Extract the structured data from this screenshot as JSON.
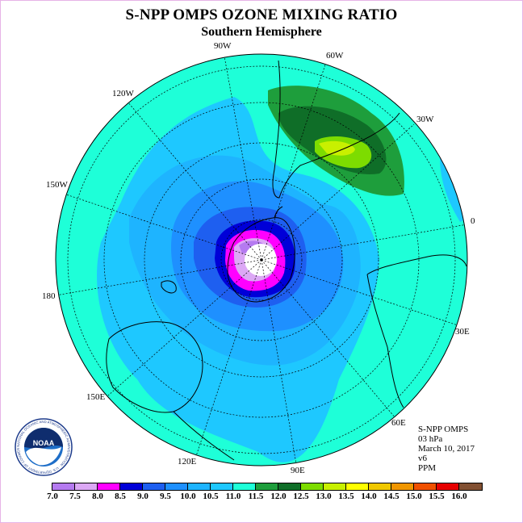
{
  "title": "S-NPP OMPS OZONE MIXING RATIO",
  "subtitle": "Southern Hemisphere",
  "longitude_labels": {
    "lon_90w": "90W",
    "lon_60w": "60W",
    "lon_30w": "30W",
    "lon_0": "0",
    "lon_30e": "30E",
    "lon_60e": "60E",
    "lon_90e": "90E",
    "lon_120e": "120E",
    "lon_150e": "150E",
    "lon_180": "180",
    "lon_150w": "150W",
    "lon_120w": "120W"
  },
  "info": {
    "instrument": "S-NPP OMPS",
    "level": "03 hPa",
    "date": "March 10, 2017",
    "version": "v6",
    "units": "PPM"
  },
  "logo": {
    "text": "NOAA",
    "ring_text": "NATIONAL OCEANIC AND ATMOSPHERIC ADMINISTRATION · U.S. DEPARTMENT OF COMMERCE"
  },
  "colorbar": {
    "ticks": [
      "7.0",
      "7.5",
      "8.0",
      "8.5",
      "9.0",
      "9.5",
      "10.0",
      "10.5",
      "11.0",
      "11.5",
      "12.0",
      "12.5",
      "13.0",
      "13.5",
      "14.0",
      "14.5",
      "15.0",
      "15.5",
      "16.0"
    ],
    "colors": [
      "#b57af0",
      "#dca8f5",
      "#ff00ff",
      "#0000d8",
      "#1e5ff0",
      "#1e90ff",
      "#1eb4ff",
      "#1ec8ff",
      "#1effd8",
      "#1e9e3c",
      "#0f6e28",
      "#7ddc00",
      "#c8f000",
      "#ffff00",
      "#f0c800",
      "#f09600",
      "#f05000",
      "#e60000",
      "#825032"
    ]
  }
}
